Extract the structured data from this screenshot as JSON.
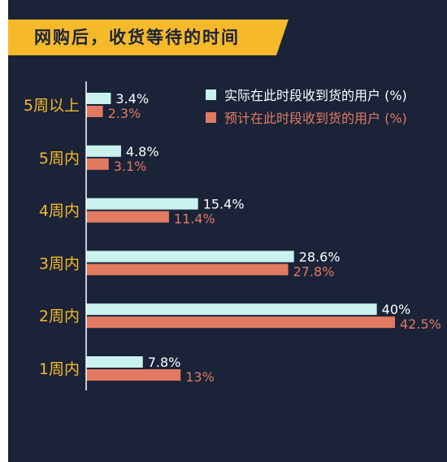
{
  "title": "网购后，收货等待的时间",
  "colors": {
    "background": "#1a2338",
    "banner": "#f5b92a",
    "actual": "#c9f2ee",
    "expected": "#e27a62",
    "category_label": "#f5b92a",
    "actual_label": "#ffffff"
  },
  "chart_data": {
    "type": "bar",
    "orientation": "horizontal",
    "title": "网购后，收货等待的时间",
    "categories": [
      "5周以上",
      "5周内",
      "4周内",
      "3周内",
      "2周内",
      "1周内"
    ],
    "series": [
      {
        "name": "实际在此时段收到货的用户 (%)",
        "values": [
          3.4,
          4.8,
          15.4,
          28.6,
          40,
          7.8
        ],
        "labels": [
          "3.4%",
          "4.8%",
          "15.4%",
          "28.6%",
          "40%",
          "7.8%"
        ]
      },
      {
        "name": "预计在此时段收到货的用户 (%)",
        "values": [
          2.3,
          3.1,
          11.4,
          27.8,
          42.5,
          13
        ],
        "labels": [
          "2.3%",
          "3.1%",
          "11.4%",
          "27.8%",
          "42.5%",
          "13%"
        ]
      }
    ],
    "xlim": [
      0,
      42.5
    ],
    "legend_position": "top-right",
    "grid": false
  }
}
